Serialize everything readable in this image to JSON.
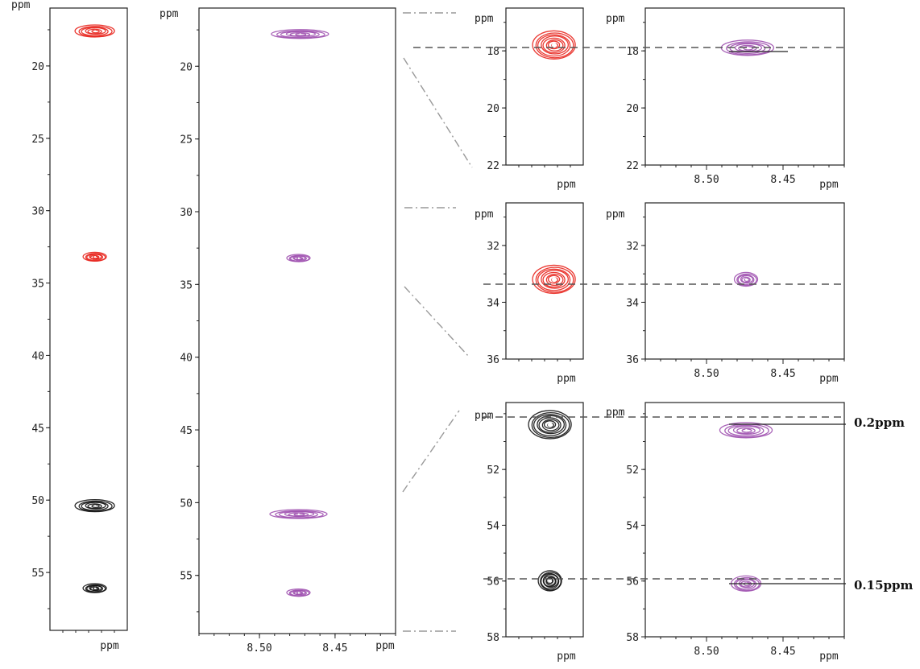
{
  "colors": {
    "red": "#e8231c",
    "black": "#111111",
    "purple": "#a052b0",
    "guide": "#999999",
    "dashed": "#555555"
  },
  "annotations": [
    "0.2ppm",
    "0.15ppm"
  ],
  "chart_data": [
    {
      "type": "scatter",
      "title": "",
      "ylabel": "ppm",
      "xlabel": "ppm",
      "ylim": [
        59,
        16
      ],
      "x_reversed": true,
      "yticks": [
        20,
        25,
        30,
        35,
        40,
        45,
        50,
        55
      ],
      "xticks": [],
      "peaks": [
        {
          "y": 17.6,
          "color": "red"
        },
        {
          "y": 33.2,
          "color": "red"
        },
        {
          "y": 50.4,
          "color": "black"
        },
        {
          "y": 56.1,
          "color": "black"
        }
      ]
    },
    {
      "type": "scatter",
      "title": "",
      "ylabel": "ppm",
      "xlabel": "ppm",
      "ylim": [
        59,
        16
      ],
      "xlim": [
        8.54,
        8.41
      ],
      "x_reversed": true,
      "yticks": [
        20,
        25,
        30,
        35,
        40,
        45,
        50,
        55
      ],
      "xticks": [
        8.5,
        8.45
      ],
      "peaks": [
        {
          "x": 8.473,
          "y": 17.8,
          "color": "purple"
        },
        {
          "x": 8.474,
          "y": 33.2,
          "color": "purple"
        },
        {
          "x": 8.474,
          "y": 50.8,
          "color": "purple"
        },
        {
          "x": 8.474,
          "y": 56.2,
          "color": "purple"
        }
      ]
    },
    {
      "type": "scatter",
      "title": "",
      "ylabel": "ppm",
      "xlabel": "ppm",
      "ylim": [
        22,
        16.5
      ],
      "yticks": [
        18,
        20,
        22
      ],
      "xticks": [],
      "peaks": [
        {
          "y": 17.8,
          "color": "red"
        }
      ]
    },
    {
      "type": "scatter",
      "title": "",
      "ylabel": "ppm",
      "xlabel": "ppm",
      "ylim": [
        22,
        16.5
      ],
      "xlim": [
        8.54,
        8.41
      ],
      "yticks": [
        18,
        20,
        22
      ],
      "xticks": [
        8.5,
        8.45
      ],
      "peaks": [
        {
          "x": 8.473,
          "y": 17.9,
          "color": "purple"
        }
      ]
    },
    {
      "type": "scatter",
      "title": "",
      "ylabel": "ppm",
      "xlabel": "ppm",
      "ylim": [
        36,
        30.5
      ],
      "yticks": [
        32,
        34,
        36
      ],
      "xticks": [],
      "peaks": [
        {
          "y": 33.2,
          "color": "red"
        }
      ]
    },
    {
      "type": "scatter",
      "title": "",
      "ylabel": "ppm",
      "xlabel": "ppm",
      "ylim": [
        36,
        30.5
      ],
      "xlim": [
        8.54,
        8.41
      ],
      "yticks": [
        32,
        34,
        36
      ],
      "xticks": [
        8.5,
        8.45
      ],
      "peaks": [
        {
          "x": 8.474,
          "y": 33.2,
          "color": "purple"
        }
      ]
    },
    {
      "type": "scatter",
      "title": "",
      "ylabel": "ppm",
      "xlabel": "ppm",
      "ylim": [
        58,
        49.6
      ],
      "yticks": [
        52,
        54,
        56,
        58
      ],
      "xticks": [],
      "peaks": [
        {
          "y": 50.4,
          "color": "black"
        },
        {
          "y": 56.0,
          "color": "black"
        }
      ]
    },
    {
      "type": "scatter",
      "title": "",
      "ylabel": "ppm",
      "xlabel": "ppm",
      "ylim": [
        58,
        49.6
      ],
      "xlim": [
        8.54,
        8.41
      ],
      "yticks": [
        52,
        54,
        56,
        58
      ],
      "xticks": [
        8.5,
        8.45
      ],
      "peaks": [
        {
          "x": 8.474,
          "y": 50.6,
          "color": "purple"
        },
        {
          "x": 8.474,
          "y": 56.1,
          "color": "purple"
        }
      ]
    }
  ]
}
